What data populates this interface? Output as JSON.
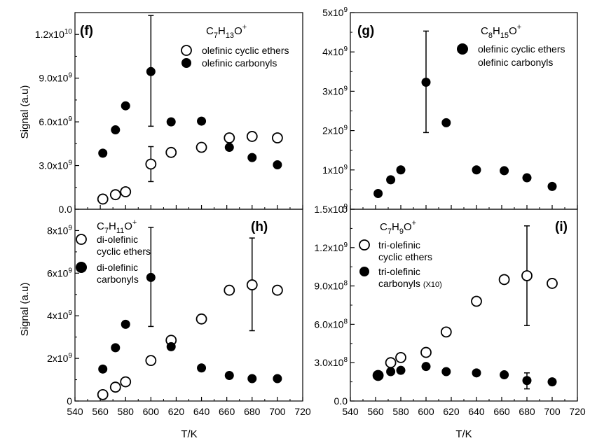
{
  "figure": {
    "ylabel": "Signal (a.u)",
    "xlabel": "T/K",
    "x_ticks": [
      540,
      560,
      580,
      600,
      620,
      640,
      660,
      680,
      700,
      720
    ]
  },
  "chart_data": [
    {
      "id": "f",
      "type": "scatter",
      "panel_label": "(f)",
      "formula": "C7H13O+",
      "xlim": [
        540,
        720
      ],
      "ylim": [
        0,
        13500000000
      ],
      "y_ticks": [
        {
          "value": 0,
          "label": "0.0"
        },
        {
          "value": 3000000000,
          "label": "3.0x10^9"
        },
        {
          "value": 6000000000,
          "label": "6.0x10^9"
        },
        {
          "value": 9000000000,
          "label": "9.0x10^9"
        },
        {
          "value": 12000000000,
          "label": "1.2x10^10"
        }
      ],
      "legend_placement": "top-right",
      "series": [
        {
          "name": "olefinic cyclic ethers",
          "marker": "open-circle",
          "x": [
            562,
            572,
            580,
            600,
            616,
            640,
            662,
            680,
            700
          ],
          "y": [
            700000000,
            1000000000,
            1200000000,
            3100000000,
            3900000000,
            4250000000,
            4900000000,
            5000000000,
            4900000000
          ],
          "errors": [
            {
              "x": 600,
              "low": 1900000000,
              "high": 4300000000
            }
          ]
        },
        {
          "name": "olefinic carbonyls",
          "marker": "filled-circle",
          "x": [
            562,
            572,
            580,
            600,
            616,
            640,
            662,
            680,
            700
          ],
          "y": [
            3850000000,
            5450000000,
            7100000000,
            9450000000,
            6000000000,
            6050000000,
            4250000000,
            3550000000,
            3050000000
          ],
          "errors": [
            {
              "x": 600,
              "low": 5700000000,
              "high": 13300000000
            }
          ]
        }
      ]
    },
    {
      "id": "g",
      "type": "scatter",
      "panel_label": "(g)",
      "formula": "C8H15O+",
      "xlim": [
        540,
        720
      ],
      "ylim": [
        0,
        5000000000
      ],
      "y_ticks": [
        {
          "value": 0,
          "label": "0"
        },
        {
          "value": 1000000000,
          "label": "1x10^9"
        },
        {
          "value": 2000000000,
          "label": "2x10^9"
        },
        {
          "value": 3000000000,
          "label": "3x10^9"
        },
        {
          "value": 4000000000,
          "label": "4x10^9"
        },
        {
          "value": 5000000000,
          "label": "5x10^9"
        }
      ],
      "legend_placement": "top-right",
      "legend_text": [
        "olefinic cyclic ethers",
        "olefinic carbonyls"
      ],
      "series": [
        {
          "name": "olefinic cyclic ethers olefinic carbonyls",
          "marker": "filled-circle",
          "x": [
            562,
            572,
            580,
            600,
            616,
            640,
            662,
            680,
            700
          ],
          "y": [
            400000000,
            750000000,
            1000000000,
            3230000000,
            2200000000,
            1000000000,
            980000000,
            800000000,
            580000000
          ],
          "errors": [
            {
              "x": 600,
              "low": 1950000000,
              "high": 4530000000
            }
          ]
        }
      ]
    },
    {
      "id": "h",
      "type": "scatter",
      "panel_label": "(h)",
      "formula": "C7H11O+",
      "xlim": [
        540,
        720
      ],
      "ylim": [
        0,
        9000000000
      ],
      "y_ticks": [
        {
          "value": 0,
          "label": "0"
        },
        {
          "value": 2000000000,
          "label": "2x10^9"
        },
        {
          "value": 4000000000,
          "label": "4x10^9"
        },
        {
          "value": 6000000000,
          "label": "6x10^9"
        },
        {
          "value": 8000000000,
          "label": "8x10^9"
        }
      ],
      "legend_placement": "top-left",
      "series": [
        {
          "name": "di-olefinic cyclic ethers",
          "marker": "open-circle",
          "x": [
            562,
            572,
            580,
            600,
            616,
            640,
            662,
            680,
            700
          ],
          "y": [
            300000000,
            650000000,
            900000000,
            1900000000,
            2850000000,
            3850000000,
            5200000000,
            5450000000,
            5200000000
          ],
          "errors": [
            {
              "x": 680,
              "low": 3300000000,
              "high": 7650000000
            }
          ]
        },
        {
          "name": "di-olefinic carbonyls",
          "marker": "filled-circle",
          "x": [
            562,
            572,
            580,
            600,
            616,
            640,
            662,
            680,
            700
          ],
          "y": [
            1500000000,
            2500000000,
            3600000000,
            5800000000,
            2550000000,
            1550000000,
            1200000000,
            1050000000,
            1050000000
          ],
          "errors": [
            {
              "x": 600,
              "low": 3500000000,
              "high": 8150000000
            }
          ]
        }
      ]
    },
    {
      "id": "i",
      "type": "scatter",
      "panel_label": "(i)",
      "formula": "C7H9O+",
      "xlim": [
        540,
        720
      ],
      "ylim": [
        0,
        1500000000
      ],
      "y_ticks": [
        {
          "value": 0,
          "label": "0.0"
        },
        {
          "value": 300000000,
          "label": "3.0x10^8"
        },
        {
          "value": 600000000,
          "label": "6.0x10^8"
        },
        {
          "value": 900000000,
          "label": "9.0x10^8"
        },
        {
          "value": 1200000000,
          "label": "1.2x10^9"
        },
        {
          "value": 1500000000,
          "label": "1.5x10^9"
        }
      ],
      "legend_placement": "top-left",
      "series": [
        {
          "name": "tri-olefinic cyclic ethers",
          "marker": "open-circle",
          "x": [
            562,
            572,
            580,
            600,
            616,
            640,
            662,
            680,
            700
          ],
          "y": [
            200000000,
            300000000,
            340000000,
            380000000,
            540000000,
            780000000,
            950000000,
            980000000,
            920000000
          ],
          "errors": [
            {
              "x": 680,
              "low": 590000000,
              "high": 1370000000
            }
          ]
        },
        {
          "name": "tri-olefinic carbonyls (X10)",
          "marker": "filled-circle",
          "x": [
            562,
            572,
            580,
            600,
            616,
            640,
            662,
            680,
            700
          ],
          "y": [
            200000000,
            230000000,
            240000000,
            270000000,
            230000000,
            220000000,
            205000000,
            160000000,
            150000000
          ],
          "errors": [
            {
              "x": 680,
              "low": 95000000,
              "high": 220000000
            }
          ]
        }
      ]
    }
  ],
  "legends": {
    "f": {
      "item1": "olefinic cyclic ethers",
      "item2": "olefinic carbonyls"
    },
    "g": {
      "line1": "olefinic cyclic ethers",
      "line2": "olefinic carbonyls"
    },
    "h": {
      "item1_line1": "di-olefinic",
      "item1_line2": "cyclic ethers",
      "item2_line1": "di-olefinic",
      "item2_line2": "carbonyls"
    },
    "i": {
      "item1_line1": "tri-olefinic",
      "item1_line2": "cyclic ethers",
      "item2_line1": "tri-olefinic",
      "item2_line2": "carbonyls",
      "item2_note": "(X10)"
    }
  },
  "formulas": {
    "f": {
      "C": "C",
      "c_sub": "7",
      "H": "H",
      "h_sub": "13",
      "O": "O",
      "sup": "+"
    },
    "g": {
      "C": "C",
      "c_sub": "8",
      "H": "H",
      "h_sub": "15",
      "O": "O",
      "sup": "+"
    },
    "h": {
      "C": "C",
      "c_sub": "7",
      "H": "H",
      "h_sub": "11",
      "O": "O",
      "sup": "+"
    },
    "i": {
      "C": "C",
      "c_sub": "7",
      "H": "H",
      "h_sub": "9",
      "O": "O",
      "sup": "+"
    }
  }
}
